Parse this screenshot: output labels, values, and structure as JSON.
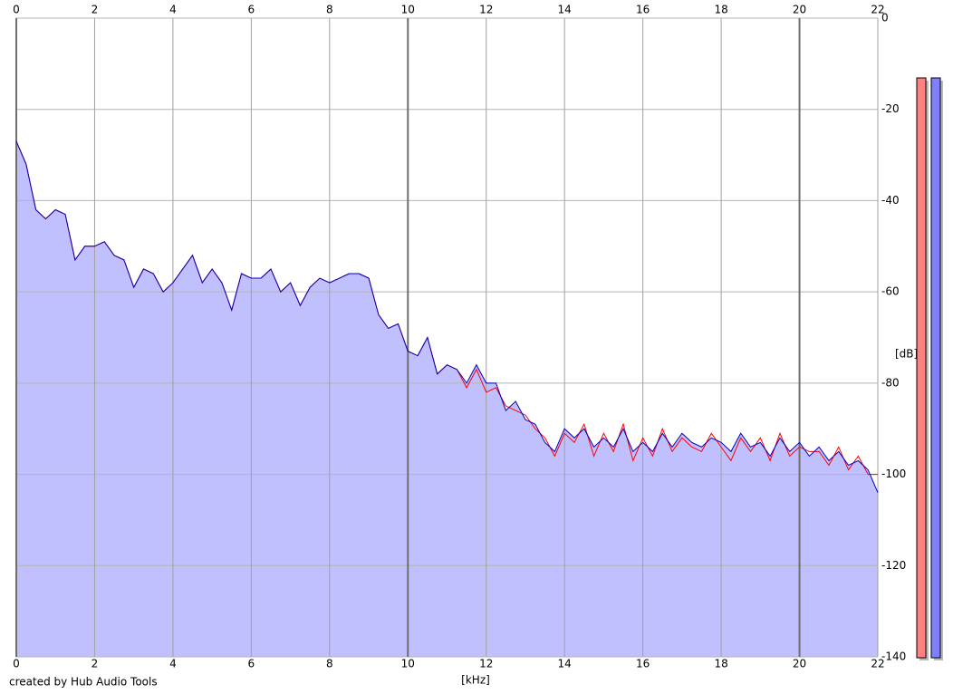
{
  "chart_data": {
    "type": "line",
    "x_label": "[kHz]",
    "y_label": "[dB]",
    "footer": "created by Hub Audio Tools",
    "x": [
      0,
      0.25,
      0.5,
      0.75,
      1,
      1.25,
      1.5,
      1.75,
      2,
      2.25,
      2.5,
      2.75,
      3,
      3.25,
      3.5,
      3.75,
      4,
      4.25,
      4.5,
      4.75,
      5,
      5.25,
      5.5,
      5.75,
      6,
      6.25,
      6.5,
      6.75,
      7,
      7.25,
      7.5,
      7.75,
      8,
      8.25,
      8.5,
      8.75,
      9,
      9.25,
      9.5,
      9.75,
      10,
      10.25,
      10.5,
      10.75,
      11,
      11.25,
      11.5,
      11.75,
      12,
      12.25,
      12.5,
      12.75,
      13,
      13.25,
      13.5,
      13.75,
      14,
      14.25,
      14.5,
      14.75,
      15,
      15.25,
      15.5,
      15.75,
      16,
      16.25,
      16.5,
      16.75,
      17,
      17.25,
      17.5,
      17.75,
      18,
      18.25,
      18.5,
      18.75,
      19,
      19.25,
      19.5,
      19.75,
      20,
      20.25,
      20.5,
      20.75,
      21,
      21.25,
      21.5,
      21.75,
      22
    ],
    "series": [
      {
        "color": "#ff0000",
        "values": [
          -27,
          -32,
          -42,
          -44,
          -42,
          -43,
          -53,
          -50,
          -50,
          -49,
          -52,
          -53,
          -59,
          -55,
          -56,
          -60,
          -58,
          -55,
          -52,
          -58,
          -55,
          -58,
          -64,
          -56,
          -57,
          -57,
          -55,
          -60,
          -58,
          -63,
          -59,
          -57,
          -58,
          -57,
          -56,
          -56,
          -57,
          -65,
          -68,
          -67,
          -73,
          -74,
          -70,
          -78,
          -76,
          -77,
          -81,
          -77,
          -82,
          -81,
          -85,
          -86,
          -87,
          -90,
          -92,
          -96,
          -91,
          -93,
          -89,
          -96,
          -91,
          -95,
          -89,
          -97,
          -92,
          -96,
          -90,
          -95,
          -92,
          -94,
          -95,
          -91,
          -94,
          -97,
          -92,
          -95,
          -92,
          -97,
          -91,
          -96,
          -94,
          -95,
          -95,
          -98,
          -94,
          -99,
          -96,
          -100,
          -100
        ]
      },
      {
        "color": "#0000c0",
        "values": [
          -27,
          -32,
          -42,
          -44,
          -42,
          -43,
          -53,
          -50,
          -50,
          -49,
          -52,
          -53,
          -59,
          -55,
          -56,
          -60,
          -58,
          -55,
          -52,
          -58,
          -55,
          -58,
          -64,
          -56,
          -57,
          -57,
          -55,
          -60,
          -58,
          -63,
          -59,
          -57,
          -58,
          -57,
          -56,
          -56,
          -57,
          -65,
          -68,
          -67,
          -73,
          -74,
          -70,
          -78,
          -76,
          -77,
          -80,
          -76,
          -80,
          -80,
          -86,
          -84,
          -88,
          -89,
          -93,
          -95,
          -90,
          -92,
          -90,
          -94,
          -92,
          -94,
          -90,
          -95,
          -93,
          -95,
          -91,
          -94,
          -91,
          -93,
          -94,
          -92,
          -93,
          -95,
          -91,
          -94,
          -93,
          -96,
          -92,
          -95,
          -93,
          -96,
          -94,
          -97,
          -95,
          -98,
          -97,
          -99,
          -104
        ]
      }
    ],
    "fill_color": "#c0c0ff",
    "xlim": [
      0,
      22
    ],
    "xticks": [
      0,
      2,
      4,
      6,
      8,
      10,
      12,
      14,
      16,
      18,
      20,
      22
    ],
    "ylim": [
      -140,
      0
    ],
    "yticks": [
      0,
      -20,
      -40,
      -60,
      -80,
      -100,
      -120,
      -140
    ],
    "grid": true
  }
}
